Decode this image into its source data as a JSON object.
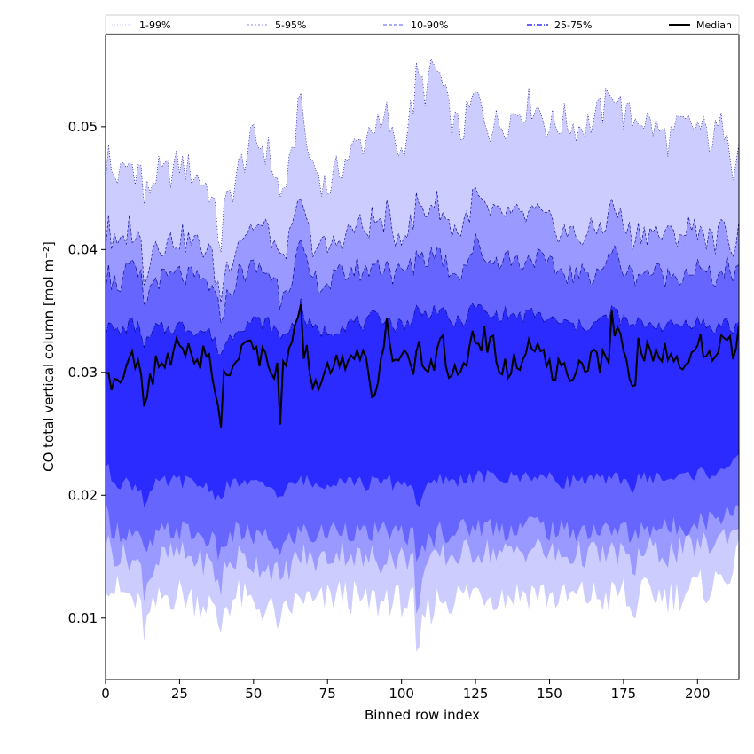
{
  "chart_data": {
    "type": "area",
    "title": "",
    "xlabel": "Binned row index",
    "ylabel": "CO total vertical column [mol m⁻²]",
    "xlim": [
      0,
      214
    ],
    "ylim": [
      0.005,
      0.0575
    ],
    "xticks": [
      0,
      25,
      50,
      75,
      100,
      125,
      150,
      175,
      200
    ],
    "xtick_labels": [
      "0",
      "25",
      "50",
      "75",
      "100",
      "125",
      "150",
      "175",
      "200"
    ],
    "yticks": [
      0.01,
      0.02,
      0.03,
      0.04,
      0.05
    ],
    "ytick_labels": [
      "0.01",
      "0.02",
      "0.03",
      "0.04",
      "0.05"
    ],
    "grid": false,
    "legend_position": "top, spanning full width",
    "legend": [
      {
        "label": "1-99%",
        "style": "dotted",
        "color": "#ccccff"
      },
      {
        "label": "5-95%",
        "style": "dashed",
        "color": "#8888ee"
      },
      {
        "label": "10-90%",
        "style": "dashed",
        "color": "#7777ff"
      },
      {
        "label": "25-75%",
        "style": "dashdot",
        "color": "#3333ff"
      },
      {
        "label": "Median",
        "style": "solid",
        "color": "#000000"
      }
    ],
    "band_colors": [
      "#ccccff",
      "#9999ff",
      "#6666ff",
      "#2b2bff"
    ],
    "median_color": "#000000",
    "n_rows": 215,
    "anchors_x": [
      0,
      1,
      2,
      5,
      8,
      12,
      13,
      17,
      20,
      25,
      30,
      35,
      39,
      40,
      45,
      50,
      55,
      58,
      59,
      60,
      63,
      66,
      67,
      70,
      75,
      80,
      85,
      88,
      90,
      93,
      95,
      97,
      100,
      104,
      105,
      108,
      111,
      113,
      116,
      120,
      125,
      130,
      135,
      140,
      145,
      150,
      155,
      160,
      165,
      170,
      171,
      175,
      178,
      180,
      185,
      190,
      195,
      200,
      205,
      210,
      212,
      214
    ],
    "bands": [
      {
        "name": "1-99%",
        "upper": [
          0.0465,
          0.0478,
          0.0462,
          0.046,
          0.047,
          0.0465,
          0.044,
          0.0462,
          0.046,
          0.047,
          0.0462,
          0.045,
          0.0405,
          0.043,
          0.0465,
          0.049,
          0.048,
          0.0455,
          0.044,
          0.045,
          0.047,
          0.054,
          0.049,
          0.047,
          0.045,
          0.047,
          0.0485,
          0.049,
          0.0505,
          0.0495,
          0.051,
          0.049,
          0.048,
          0.052,
          0.054,
          0.053,
          0.0548,
          0.054,
          0.051,
          0.0495,
          0.0525,
          0.05,
          0.0505,
          0.0515,
          0.052,
          0.05,
          0.0505,
          0.05,
          0.0505,
          0.052,
          0.0535,
          0.051,
          0.0505,
          0.051,
          0.05,
          0.049,
          0.05,
          0.05,
          0.049,
          0.0505,
          0.047,
          0.0485
        ],
        "lower": [
          0.0135,
          0.013,
          0.0125,
          0.012,
          0.0118,
          0.0105,
          0.009,
          0.011,
          0.0118,
          0.012,
          0.0115,
          0.0112,
          0.009,
          0.011,
          0.0118,
          0.011,
          0.0108,
          0.01,
          0.0085,
          0.01,
          0.011,
          0.0115,
          0.0118,
          0.011,
          0.0115,
          0.012,
          0.0115,
          0.011,
          0.0115,
          0.011,
          0.012,
          0.0112,
          0.0115,
          0.011,
          0.006,
          0.0105,
          0.011,
          0.0118,
          0.0115,
          0.0118,
          0.0122,
          0.012,
          0.0118,
          0.012,
          0.0122,
          0.0118,
          0.0115,
          0.0118,
          0.0118,
          0.0115,
          0.0118,
          0.0122,
          0.01,
          0.0118,
          0.012,
          0.0118,
          0.012,
          0.0125,
          0.0125,
          0.014,
          0.0135,
          0.015
        ]
      },
      {
        "name": "5-95%",
        "upper": [
          0.0405,
          0.043,
          0.0405,
          0.04,
          0.042,
          0.0405,
          0.038,
          0.0408,
          0.0405,
          0.041,
          0.0405,
          0.04,
          0.036,
          0.038,
          0.041,
          0.042,
          0.0415,
          0.04,
          0.0385,
          0.04,
          0.041,
          0.0445,
          0.0425,
          0.0405,
          0.04,
          0.041,
          0.042,
          0.0415,
          0.0425,
          0.042,
          0.043,
          0.041,
          0.0415,
          0.042,
          0.044,
          0.043,
          0.044,
          0.0435,
          0.042,
          0.0415,
          0.0445,
          0.0425,
          0.043,
          0.0425,
          0.043,
          0.042,
          0.0415,
          0.041,
          0.0415,
          0.0425,
          0.044,
          0.042,
          0.041,
          0.0415,
          0.0415,
          0.041,
          0.0415,
          0.042,
          0.0405,
          0.042,
          0.04,
          0.0415
        ],
        "lower": [
          0.0165,
          0.016,
          0.0155,
          0.015,
          0.015,
          0.014,
          0.0125,
          0.0145,
          0.015,
          0.0152,
          0.0148,
          0.0145,
          0.0125,
          0.014,
          0.015,
          0.0145,
          0.0142,
          0.0138,
          0.012,
          0.0135,
          0.0145,
          0.015,
          0.0152,
          0.0145,
          0.015,
          0.0155,
          0.015,
          0.0145,
          0.015,
          0.0145,
          0.0155,
          0.0148,
          0.015,
          0.0145,
          0.011,
          0.014,
          0.0145,
          0.0152,
          0.015,
          0.0152,
          0.0155,
          0.0155,
          0.0152,
          0.0155,
          0.0158,
          0.0152,
          0.015,
          0.0152,
          0.0152,
          0.015,
          0.0152,
          0.0155,
          0.0135,
          0.0152,
          0.0155,
          0.0152,
          0.0155,
          0.016,
          0.016,
          0.017,
          0.0168,
          0.018
        ]
      },
      {
        "name": "10-90%",
        "upper": [
          0.0375,
          0.0395,
          0.0375,
          0.0372,
          0.0385,
          0.0375,
          0.0355,
          0.0378,
          0.0375,
          0.038,
          0.0375,
          0.0372,
          0.0345,
          0.0355,
          0.038,
          0.0385,
          0.0382,
          0.0372,
          0.036,
          0.037,
          0.0378,
          0.0405,
          0.039,
          0.0375,
          0.0372,
          0.038,
          0.0385,
          0.038,
          0.039,
          0.0385,
          0.0392,
          0.0378,
          0.0382,
          0.0385,
          0.04,
          0.0392,
          0.04,
          0.0398,
          0.0385,
          0.0382,
          0.0405,
          0.039,
          0.0395,
          0.039,
          0.0395,
          0.0385,
          0.0382,
          0.0378,
          0.0382,
          0.039,
          0.04,
          0.0385,
          0.0378,
          0.0382,
          0.0382,
          0.0378,
          0.0382,
          0.0385,
          0.0375,
          0.0385,
          0.037,
          0.0385
        ],
        "lower": [
          0.0185,
          0.018,
          0.0175,
          0.017,
          0.017,
          0.0162,
          0.015,
          0.0165,
          0.017,
          0.0172,
          0.0168,
          0.0165,
          0.015,
          0.0162,
          0.017,
          0.0166,
          0.0164,
          0.016,
          0.0148,
          0.0158,
          0.0166,
          0.017,
          0.0172,
          0.0166,
          0.017,
          0.0175,
          0.017,
          0.0166,
          0.017,
          0.0166,
          0.0175,
          0.0168,
          0.017,
          0.0166,
          0.014,
          0.0162,
          0.0166,
          0.0172,
          0.017,
          0.0172,
          0.0175,
          0.0175,
          0.0172,
          0.0175,
          0.0178,
          0.0172,
          0.017,
          0.0172,
          0.0172,
          0.017,
          0.0172,
          0.0175,
          0.016,
          0.0172,
          0.0175,
          0.0172,
          0.0175,
          0.018,
          0.018,
          0.0188,
          0.0186,
          0.0195
        ]
      },
      {
        "name": "25-75%",
        "upper": [
          0.0335,
          0.0345,
          0.0335,
          0.0332,
          0.034,
          0.0335,
          0.032,
          0.0336,
          0.0335,
          0.0338,
          0.0335,
          0.0333,
          0.0315,
          0.0322,
          0.0338,
          0.0342,
          0.034,
          0.0333,
          0.0325,
          0.0332,
          0.0337,
          0.0355,
          0.0345,
          0.0335,
          0.0333,
          0.0338,
          0.0342,
          0.0338,
          0.0345,
          0.0342,
          0.0348,
          0.0337,
          0.034,
          0.0342,
          0.0352,
          0.0347,
          0.0352,
          0.035,
          0.0342,
          0.034,
          0.0355,
          0.0345,
          0.0348,
          0.0345,
          0.0348,
          0.0342,
          0.034,
          0.0337,
          0.034,
          0.0345,
          0.0352,
          0.0342,
          0.0337,
          0.034,
          0.034,
          0.0337,
          0.034,
          0.0342,
          0.0335,
          0.0342,
          0.0332,
          0.0342
        ],
        "lower": [
          0.0225,
          0.022,
          0.0215,
          0.021,
          0.021,
          0.0205,
          0.0195,
          0.0208,
          0.021,
          0.0212,
          0.0209,
          0.0207,
          0.0195,
          0.0205,
          0.0211,
          0.0208,
          0.0207,
          0.0204,
          0.0195,
          0.0202,
          0.0208,
          0.0212,
          0.0213,
          0.0208,
          0.0211,
          0.0214,
          0.0211,
          0.0208,
          0.0211,
          0.0208,
          0.0214,
          0.0209,
          0.0211,
          0.0208,
          0.019,
          0.0205,
          0.0208,
          0.0213,
          0.0211,
          0.0213,
          0.0215,
          0.0215,
          0.0213,
          0.0215,
          0.0217,
          0.0213,
          0.0211,
          0.0213,
          0.0213,
          0.0211,
          0.0213,
          0.0215,
          0.0205,
          0.0213,
          0.0215,
          0.0213,
          0.0215,
          0.0218,
          0.0218,
          0.0225,
          0.0223,
          0.023
        ]
      }
    ],
    "median": [
      0.029,
      0.0305,
      0.0295,
      0.03,
      0.031,
      0.03,
      0.027,
      0.031,
      0.0305,
      0.0325,
      0.031,
      0.0315,
      0.026,
      0.0295,
      0.032,
      0.032,
      0.031,
      0.03,
      0.0265,
      0.03,
      0.0315,
      0.0355,
      0.032,
      0.0295,
      0.03,
      0.031,
      0.032,
      0.031,
      0.027,
      0.031,
      0.035,
      0.0315,
      0.031,
      0.03,
      0.032,
      0.0305,
      0.031,
      0.0335,
      0.03,
      0.0305,
      0.033,
      0.0325,
      0.03,
      0.031,
      0.032,
      0.0305,
      0.03,
      0.03,
      0.031,
      0.031,
      0.0345,
      0.032,
      0.028,
      0.032,
      0.031,
      0.032,
      0.031,
      0.0325,
      0.031,
      0.033,
      0.032,
      0.0335
    ]
  }
}
